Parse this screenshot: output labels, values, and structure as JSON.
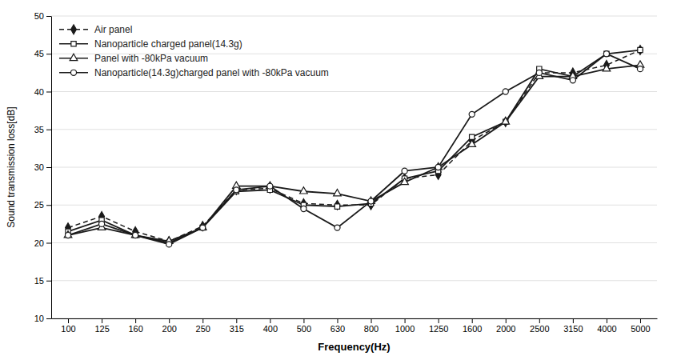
{
  "chart_data": {
    "type": "line",
    "xlabel": "Frequency(Hz)",
    "ylabel": "Sound transmission loss[dB]",
    "categories": [
      "100",
      "125",
      "160",
      "200",
      "250",
      "315",
      "400",
      "500",
      "630",
      "800",
      "1000",
      "1250",
      "1600",
      "2000",
      "2500",
      "3150",
      "4000",
      "5000"
    ],
    "series": [
      {
        "name": "Air panel",
        "color": "#1a1a1a",
        "marker": "diamond",
        "line_style": "dashed",
        "values": [
          22.0,
          23.5,
          21.5,
          20.2,
          22.2,
          27.0,
          27.2,
          25.2,
          25.0,
          25.0,
          28.5,
          29.0,
          33.5,
          36.0,
          42.5,
          42.5,
          43.5,
          45.5
        ]
      },
      {
        "name": "Nanoparticle charged panel(14.3g)",
        "color": "#1a1a1a",
        "marker": "square-open",
        "line_style": "solid",
        "values": [
          21.5,
          23.0,
          21.0,
          20.0,
          22.0,
          26.8,
          27.0,
          25.0,
          24.8,
          25.2,
          28.5,
          29.5,
          34.0,
          36.0,
          43.0,
          42.0,
          45.0,
          45.5
        ]
      },
      {
        "name": "Panel with -80kPa vacuum",
        "color": "#1a1a1a",
        "marker": "triangle-open",
        "line_style": "solid",
        "values": [
          21.0,
          22.0,
          21.0,
          20.2,
          22.0,
          27.5,
          27.5,
          26.8,
          26.5,
          25.5,
          28.0,
          30.0,
          33.0,
          36.0,
          42.0,
          42.0,
          43.0,
          43.5
        ]
      },
      {
        "name": "Nanoparticle(14.3g)charged panel with -80kPa vacuum",
        "color": "#1a1a1a",
        "marker": "circle-open",
        "line_style": "solid",
        "values": [
          21.0,
          22.5,
          21.0,
          19.8,
          22.0,
          27.0,
          27.5,
          24.5,
          22.0,
          25.5,
          29.5,
          30.0,
          37.0,
          40.0,
          42.5,
          41.5,
          45.0,
          43.0
        ]
      }
    ],
    "ylim": [
      10,
      50
    ],
    "yticks": [
      10,
      15,
      20,
      25,
      30,
      35,
      40,
      45,
      50
    ],
    "grid": true,
    "legend": "upper left"
  }
}
